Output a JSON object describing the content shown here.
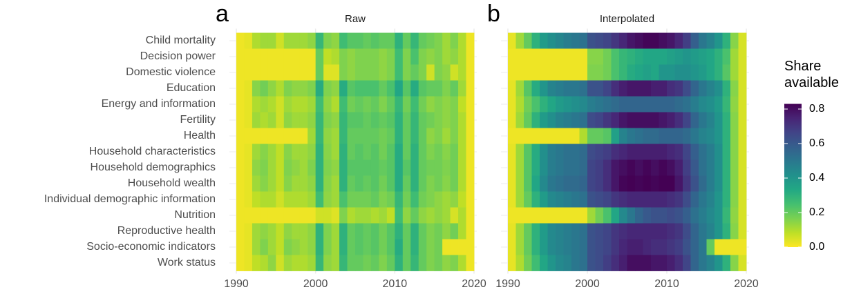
{
  "chart_data": [
    {
      "type": "heatmap",
      "panel_label": "a",
      "title": "Raw",
      "y_categories": [
        "Child mortality",
        "Decision power",
        "Domestic violence",
        "Education",
        "Energy and information",
        "Fertility",
        "Health",
        "Household characteristics",
        "Household demographics",
        "Household wealth",
        "Individual demographic information",
        "Nutrition",
        "Reproductive health",
        "Socio-economic indicators",
        "Work status"
      ],
      "x": [
        1990,
        1991,
        1992,
        1993,
        1994,
        1995,
        1996,
        1997,
        1998,
        1999,
        2000,
        2001,
        2002,
        2003,
        2004,
        2005,
        2006,
        2007,
        2008,
        2009,
        2010,
        2011,
        2012,
        2013,
        2014,
        2015,
        2016,
        2017,
        2018,
        2019
      ],
      "xlim": [
        1990,
        2020
      ],
      "xticks": [
        1990,
        2000,
        2010,
        2020
      ],
      "values": [
        [
          0.02,
          0.03,
          0.1,
          0.12,
          0.12,
          0.06,
          0.12,
          0.12,
          0.12,
          0.14,
          0.28,
          0.16,
          0.14,
          0.26,
          0.22,
          0.22,
          0.2,
          0.22,
          0.2,
          0.2,
          0.3,
          0.2,
          0.28,
          0.2,
          0.18,
          0.16,
          0.12,
          0.16,
          0.1,
          0.02
        ],
        [
          0.02,
          0.02,
          0.02,
          0.02,
          0.02,
          0.02,
          0.02,
          0.02,
          0.02,
          0.02,
          0.2,
          0.08,
          0.1,
          0.16,
          0.14,
          0.16,
          0.16,
          0.16,
          0.14,
          0.16,
          0.26,
          0.16,
          0.24,
          0.16,
          0.14,
          0.16,
          0.12,
          0.14,
          0.1,
          0.02
        ],
        [
          0.02,
          0.02,
          0.02,
          0.02,
          0.02,
          0.02,
          0.02,
          0.02,
          0.02,
          0.02,
          0.2,
          0.04,
          0.04,
          0.16,
          0.14,
          0.16,
          0.16,
          0.16,
          0.14,
          0.16,
          0.26,
          0.16,
          0.2,
          0.16,
          0.06,
          0.16,
          0.14,
          0.06,
          0.1,
          0.02
        ],
        [
          0.02,
          0.03,
          0.15,
          0.18,
          0.14,
          0.1,
          0.16,
          0.14,
          0.14,
          0.16,
          0.32,
          0.16,
          0.14,
          0.32,
          0.22,
          0.24,
          0.24,
          0.24,
          0.2,
          0.24,
          0.34,
          0.22,
          0.32,
          0.22,
          0.2,
          0.2,
          0.16,
          0.2,
          0.12,
          0.02
        ],
        [
          0.02,
          0.03,
          0.1,
          0.12,
          0.1,
          0.06,
          0.12,
          0.1,
          0.1,
          0.12,
          0.26,
          0.14,
          0.1,
          0.26,
          0.18,
          0.2,
          0.18,
          0.2,
          0.16,
          0.2,
          0.28,
          0.18,
          0.26,
          0.18,
          0.14,
          0.16,
          0.14,
          0.16,
          0.08,
          0.02
        ],
        [
          0.02,
          0.03,
          0.12,
          0.1,
          0.12,
          0.06,
          0.14,
          0.12,
          0.12,
          0.14,
          0.28,
          0.16,
          0.14,
          0.28,
          0.22,
          0.22,
          0.2,
          0.22,
          0.2,
          0.22,
          0.3,
          0.2,
          0.28,
          0.2,
          0.18,
          0.16,
          0.14,
          0.16,
          0.1,
          0.02
        ],
        [
          0.02,
          0.02,
          0.02,
          0.02,
          0.02,
          0.02,
          0.02,
          0.02,
          0.02,
          0.12,
          0.28,
          0.14,
          0.12,
          0.28,
          0.2,
          0.2,
          0.2,
          0.2,
          0.18,
          0.2,
          0.3,
          0.2,
          0.28,
          0.2,
          0.14,
          0.16,
          0.12,
          0.16,
          0.1,
          0.02
        ],
        [
          0.02,
          0.03,
          0.12,
          0.15,
          0.12,
          0.08,
          0.15,
          0.12,
          0.12,
          0.14,
          0.3,
          0.15,
          0.12,
          0.3,
          0.2,
          0.22,
          0.2,
          0.22,
          0.18,
          0.22,
          0.32,
          0.2,
          0.3,
          0.2,
          0.16,
          0.18,
          0.15,
          0.18,
          0.1,
          0.02
        ],
        [
          0.02,
          0.03,
          0.14,
          0.16,
          0.12,
          0.08,
          0.16,
          0.14,
          0.12,
          0.16,
          0.3,
          0.16,
          0.14,
          0.3,
          0.22,
          0.22,
          0.22,
          0.22,
          0.2,
          0.22,
          0.32,
          0.22,
          0.3,
          0.2,
          0.18,
          0.18,
          0.16,
          0.18,
          0.1,
          0.02
        ],
        [
          0.02,
          0.03,
          0.12,
          0.15,
          0.12,
          0.08,
          0.15,
          0.12,
          0.12,
          0.14,
          0.3,
          0.15,
          0.12,
          0.3,
          0.2,
          0.22,
          0.2,
          0.22,
          0.18,
          0.22,
          0.32,
          0.2,
          0.3,
          0.2,
          0.16,
          0.18,
          0.15,
          0.18,
          0.1,
          0.02
        ],
        [
          0.02,
          0.03,
          0.08,
          0.1,
          0.1,
          0.06,
          0.1,
          0.1,
          0.1,
          0.12,
          0.26,
          0.14,
          0.12,
          0.24,
          0.18,
          0.18,
          0.18,
          0.2,
          0.16,
          0.18,
          0.28,
          0.18,
          0.26,
          0.18,
          0.16,
          0.14,
          0.12,
          0.14,
          0.08,
          0.02
        ],
        [
          0.02,
          0.02,
          0.02,
          0.02,
          0.02,
          0.02,
          0.02,
          0.02,
          0.02,
          0.02,
          0.06,
          0.06,
          0.04,
          0.16,
          0.1,
          0.12,
          0.12,
          0.1,
          0.12,
          0.08,
          0.26,
          0.14,
          0.2,
          0.14,
          0.12,
          0.14,
          0.12,
          0.05,
          0.1,
          0.02
        ],
        [
          0.02,
          0.03,
          0.12,
          0.14,
          0.12,
          0.08,
          0.14,
          0.12,
          0.12,
          0.14,
          0.3,
          0.16,
          0.12,
          0.3,
          0.2,
          0.22,
          0.2,
          0.22,
          0.18,
          0.22,
          0.3,
          0.2,
          0.3,
          0.2,
          0.16,
          0.18,
          0.14,
          0.18,
          0.1,
          0.02
        ],
        [
          0.02,
          0.03,
          0.12,
          0.16,
          0.12,
          0.08,
          0.16,
          0.14,
          0.12,
          0.14,
          0.3,
          0.16,
          0.12,
          0.3,
          0.2,
          0.22,
          0.2,
          0.22,
          0.18,
          0.22,
          0.32,
          0.2,
          0.3,
          0.2,
          0.16,
          0.18,
          0.02,
          0.02,
          0.02,
          0.02
        ],
        [
          0.02,
          0.03,
          0.08,
          0.1,
          0.14,
          0.06,
          0.12,
          0.1,
          0.1,
          0.12,
          0.28,
          0.14,
          0.12,
          0.28,
          0.2,
          0.2,
          0.18,
          0.2,
          0.16,
          0.2,
          0.3,
          0.2,
          0.28,
          0.2,
          0.16,
          0.18,
          0.14,
          0.16,
          0.1,
          0.02
        ]
      ]
    },
    {
      "type": "heatmap",
      "panel_label": "b",
      "title": "Interpolated",
      "x": [
        1990,
        1991,
        1992,
        1993,
        1994,
        1995,
        1996,
        1997,
        1998,
        1999,
        2000,
        2001,
        2002,
        2003,
        2004,
        2005,
        2006,
        2007,
        2008,
        2009,
        2010,
        2011,
        2012,
        2013,
        2014,
        2015,
        2016,
        2017,
        2018,
        2019
      ],
      "xlim": [
        1990,
        2020
      ],
      "xticks": [
        1990,
        2000,
        2010,
        2020
      ],
      "values": [
        [
          0.03,
          0.12,
          0.2,
          0.3,
          0.38,
          0.42,
          0.45,
          0.48,
          0.5,
          0.52,
          0.62,
          0.64,
          0.66,
          0.7,
          0.74,
          0.78,
          0.8,
          0.82,
          0.82,
          0.8,
          0.78,
          0.74,
          0.68,
          0.58,
          0.5,
          0.46,
          0.4,
          0.3,
          0.15,
          0.05
        ],
        [
          0.02,
          0.02,
          0.02,
          0.02,
          0.02,
          0.02,
          0.02,
          0.02,
          0.02,
          0.02,
          0.15,
          0.15,
          0.18,
          0.24,
          0.28,
          0.3,
          0.32,
          0.34,
          0.34,
          0.34,
          0.36,
          0.38,
          0.4,
          0.38,
          0.36,
          0.34,
          0.3,
          0.24,
          0.12,
          0.05
        ],
        [
          0.02,
          0.02,
          0.02,
          0.02,
          0.02,
          0.02,
          0.02,
          0.02,
          0.02,
          0.02,
          0.16,
          0.16,
          0.18,
          0.24,
          0.28,
          0.32,
          0.34,
          0.36,
          0.34,
          0.4,
          0.4,
          0.42,
          0.42,
          0.4,
          0.38,
          0.34,
          0.3,
          0.22,
          0.12,
          0.05
        ],
        [
          0.03,
          0.12,
          0.22,
          0.32,
          0.4,
          0.46,
          0.48,
          0.5,
          0.5,
          0.52,
          0.62,
          0.62,
          0.66,
          0.72,
          0.76,
          0.78,
          0.78,
          0.78,
          0.76,
          0.76,
          0.72,
          0.7,
          0.64,
          0.56,
          0.5,
          0.46,
          0.42,
          0.3,
          0.15,
          0.05
        ],
        [
          0.03,
          0.1,
          0.18,
          0.24,
          0.3,
          0.34,
          0.38,
          0.4,
          0.42,
          0.44,
          0.48,
          0.5,
          0.52,
          0.54,
          0.56,
          0.56,
          0.56,
          0.56,
          0.56,
          0.56,
          0.56,
          0.54,
          0.52,
          0.48,
          0.44,
          0.42,
          0.38,
          0.28,
          0.14,
          0.05
        ],
        [
          0.03,
          0.12,
          0.2,
          0.3,
          0.38,
          0.42,
          0.46,
          0.48,
          0.5,
          0.52,
          0.64,
          0.66,
          0.7,
          0.74,
          0.78,
          0.8,
          0.8,
          0.8,
          0.8,
          0.78,
          0.76,
          0.72,
          0.66,
          0.56,
          0.5,
          0.46,
          0.4,
          0.3,
          0.15,
          0.05
        ],
        [
          0.02,
          0.02,
          0.02,
          0.02,
          0.02,
          0.02,
          0.02,
          0.02,
          0.02,
          0.1,
          0.2,
          0.2,
          0.22,
          0.36,
          0.46,
          0.5,
          0.52,
          0.54,
          0.54,
          0.56,
          0.56,
          0.56,
          0.54,
          0.5,
          0.46,
          0.44,
          0.4,
          0.3,
          0.15,
          0.05
        ],
        [
          0.03,
          0.12,
          0.22,
          0.32,
          0.42,
          0.48,
          0.5,
          0.52,
          0.52,
          0.54,
          0.64,
          0.66,
          0.68,
          0.72,
          0.74,
          0.76,
          0.76,
          0.76,
          0.76,
          0.76,
          0.74,
          0.72,
          0.66,
          0.58,
          0.52,
          0.48,
          0.42,
          0.3,
          0.15,
          0.05
        ],
        [
          0.03,
          0.12,
          0.22,
          0.32,
          0.42,
          0.48,
          0.5,
          0.52,
          0.52,
          0.54,
          0.66,
          0.68,
          0.72,
          0.78,
          0.8,
          0.82,
          0.8,
          0.82,
          0.8,
          0.82,
          0.8,
          0.76,
          0.68,
          0.6,
          0.52,
          0.48,
          0.42,
          0.3,
          0.15,
          0.05
        ],
        [
          0.03,
          0.12,
          0.22,
          0.34,
          0.44,
          0.5,
          0.52,
          0.54,
          0.54,
          0.56,
          0.66,
          0.68,
          0.72,
          0.78,
          0.82,
          0.84,
          0.82,
          0.84,
          0.82,
          0.84,
          0.84,
          0.78,
          0.7,
          0.62,
          0.54,
          0.48,
          0.42,
          0.3,
          0.15,
          0.05
        ],
        [
          0.03,
          0.12,
          0.2,
          0.3,
          0.38,
          0.44,
          0.46,
          0.48,
          0.5,
          0.52,
          0.62,
          0.64,
          0.66,
          0.7,
          0.72,
          0.74,
          0.74,
          0.74,
          0.74,
          0.74,
          0.72,
          0.7,
          0.64,
          0.56,
          0.5,
          0.46,
          0.4,
          0.3,
          0.15,
          0.05
        ],
        [
          0.02,
          0.02,
          0.02,
          0.02,
          0.02,
          0.02,
          0.02,
          0.02,
          0.02,
          0.02,
          0.12,
          0.18,
          0.24,
          0.34,
          0.44,
          0.5,
          0.56,
          0.6,
          0.62,
          0.62,
          0.64,
          0.62,
          0.58,
          0.52,
          0.48,
          0.44,
          0.4,
          0.28,
          0.14,
          0.05
        ],
        [
          0.03,
          0.12,
          0.2,
          0.3,
          0.38,
          0.44,
          0.46,
          0.48,
          0.5,
          0.52,
          0.62,
          0.64,
          0.66,
          0.7,
          0.72,
          0.74,
          0.74,
          0.74,
          0.74,
          0.74,
          0.72,
          0.7,
          0.64,
          0.56,
          0.5,
          0.46,
          0.4,
          0.3,
          0.15,
          0.05
        ],
        [
          0.03,
          0.12,
          0.2,
          0.3,
          0.38,
          0.44,
          0.46,
          0.48,
          0.5,
          0.52,
          0.62,
          0.64,
          0.66,
          0.7,
          0.74,
          0.76,
          0.76,
          0.74,
          0.72,
          0.72,
          0.7,
          0.68,
          0.62,
          0.56,
          0.5,
          0.2,
          0.02,
          0.02,
          0.02,
          0.02
        ],
        [
          0.03,
          0.1,
          0.18,
          0.26,
          0.34,
          0.4,
          0.44,
          0.46,
          0.5,
          0.52,
          0.62,
          0.64,
          0.68,
          0.72,
          0.76,
          0.8,
          0.8,
          0.8,
          0.78,
          0.78,
          0.76,
          0.72,
          0.66,
          0.56,
          0.5,
          0.46,
          0.4,
          0.3,
          0.15,
          0.05
        ]
      ]
    }
  ],
  "colorbar": {
    "title": "Share available",
    "clim": [
      0,
      0.83
    ],
    "colors": [
      "#fde725",
      "#bddf26",
      "#7ad151",
      "#44bf70",
      "#22a884",
      "#21918c",
      "#2a788e",
      "#355f8d",
      "#414487",
      "#482475",
      "#440154"
    ],
    "ticks": [
      {
        "value": 0,
        "label": "0.0"
      },
      0.2,
      0.4,
      0.6,
      0.8
    ]
  }
}
